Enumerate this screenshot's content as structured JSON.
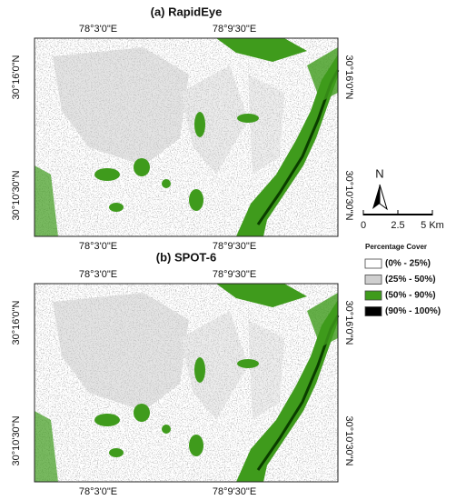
{
  "panels": [
    {
      "title": "(a)  RapidEye",
      "top_labels": [
        "78°3'0\"E",
        "78°9'30\"E"
      ],
      "bottom_labels": [
        "78°3'0\"E",
        "78°9'30\"E"
      ],
      "left_labels": [
        "30°16'0\"N",
        "30°10'30\"N"
      ],
      "right_labels": [
        "30°16'0\"N",
        "30°10'30\"N"
      ]
    },
    {
      "title": "(b)  SPOT-6",
      "top_labels": [
        "78°3'0\"E",
        "78°9'30\"E"
      ],
      "bottom_labels": [
        "78°3'0\"E",
        "78°9'30\"E"
      ],
      "left_labels": [
        "30°16'0\"N",
        "30°10'30\"N"
      ],
      "right_labels": [
        "30°16'0\"N",
        "30°10'30\"N"
      ]
    }
  ],
  "north_label": "N",
  "scale_bar": {
    "labels": [
      "0",
      "2.5",
      "5 Km"
    ]
  },
  "legend": {
    "title": "Percentage Cover",
    "items": [
      {
        "label": "(0% - 25%)",
        "color": "#ffffff"
      },
      {
        "label": "(25% - 50%)",
        "color": "#cfcfcf"
      },
      {
        "label": "(50% - 90%)",
        "color": "#3f9b1c"
      },
      {
        "label": "(90% - 100%)",
        "color": "#000000"
      }
    ]
  }
}
